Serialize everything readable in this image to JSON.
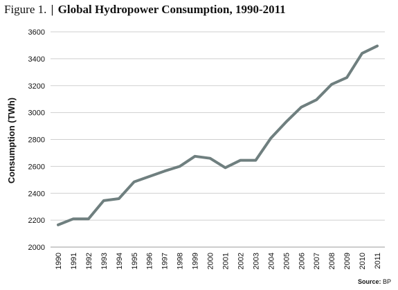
{
  "figure_label": "Figure 1.",
  "separator": "|",
  "chart_data": {
    "type": "line",
    "title": "Global Hydropower Consumption, 1990-2011",
    "xlabel": "",
    "ylabel": "Consumption (TWh)",
    "x": [
      "1990",
      "1991",
      "1992",
      "1993",
      "1994",
      "1995",
      "1996",
      "1997",
      "1998",
      "1999",
      "2000",
      "2001",
      "2002",
      "2003",
      "2004",
      "2005",
      "2006",
      "2007",
      "2008",
      "2009",
      "2010",
      "2011"
    ],
    "series": [
      {
        "values": [
          2165,
          2210,
          2210,
          2345,
          2360,
          2485,
          2525,
          2565,
          2600,
          2675,
          2660,
          2590,
          2645,
          2645,
          2810,
          2930,
          3040,
          3095,
          3210,
          3260,
          3440,
          3495
        ],
        "color": "#6f7f7f"
      }
    ],
    "ylim": [
      2000,
      3600
    ],
    "yticks": [
      2000,
      2200,
      2400,
      2600,
      2800,
      3000,
      3200,
      3400,
      3600
    ],
    "grid": true,
    "legend": "none"
  },
  "source": {
    "label": "Source:",
    "value": "BP"
  }
}
